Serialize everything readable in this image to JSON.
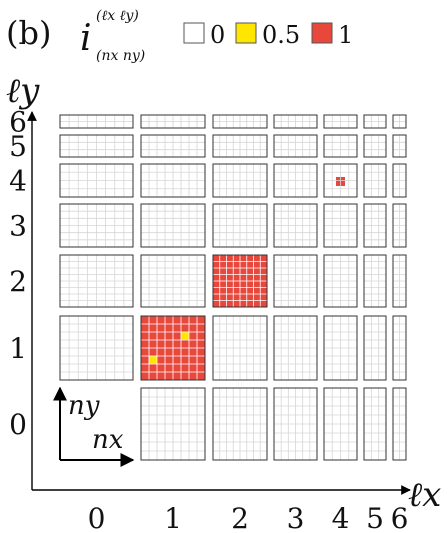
{
  "panel_label": "(b)",
  "title": {
    "symbol": "i",
    "superscript": "(ℓx ℓy)",
    "subscript": "(nx ny)"
  },
  "legend": [
    {
      "label": "0",
      "color": "#ffffff"
    },
    {
      "label": "0.5",
      "color": "#ffe600"
    },
    {
      "label": "1",
      "color": "#e8473c"
    }
  ],
  "axes": {
    "x_label": "ℓx",
    "y_label": "ℓy",
    "x_ticks": [
      "0",
      "1",
      "2",
      "3",
      "4",
      "5",
      "6"
    ],
    "y_ticks": [
      "0",
      "1",
      "2",
      "3",
      "4",
      "5",
      "6"
    ]
  },
  "inset_axes": {
    "x_label": "nx",
    "y_label": "ny"
  },
  "chart_data": {
    "type": "heatmap",
    "x_levels": [
      0,
      1,
      2,
      3,
      4,
      5,
      6
    ],
    "y_levels": [
      0,
      1,
      2,
      3,
      4,
      5,
      6
    ],
    "empty_block": [
      0,
      0
    ],
    "filled_blocks": [
      {
        "lx": 1,
        "ly": 1,
        "value": 1,
        "half_cells": [
          [
            1,
            2
          ],
          [
            5,
            5
          ]
        ]
      },
      {
        "lx": 2,
        "ly": 2,
        "value": 1,
        "half_cells": []
      },
      {
        "lx": 4,
        "ly": 4,
        "value": 1,
        "half_cells": []
      }
    ]
  }
}
